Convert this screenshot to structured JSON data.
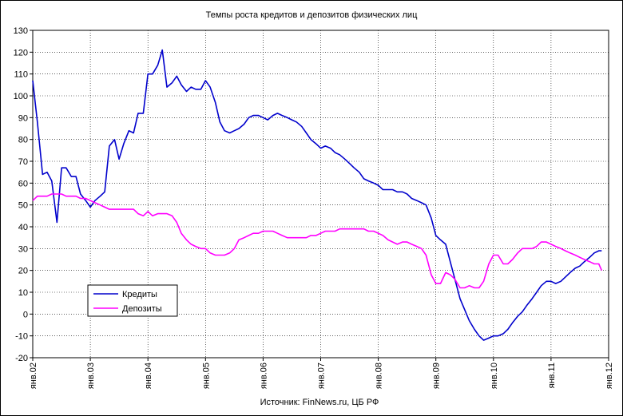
{
  "chart_data": {
    "type": "line",
    "title": "Темпы роста кредитов и депозитов физических лиц",
    "source": "Источник: FinNews.ru, ЦБ РФ",
    "xlabel": "",
    "ylabel": "",
    "ylim": [
      -20,
      130
    ],
    "yticks": [
      -20,
      -10,
      0,
      10,
      20,
      30,
      40,
      50,
      60,
      70,
      80,
      90,
      100,
      110,
      120,
      130
    ],
    "x_range": [
      2002.0,
      2012.0
    ],
    "x_ticks": [
      {
        "label": "янв.02",
        "x": 2002.0
      },
      {
        "label": "янв.03",
        "x": 2003.0
      },
      {
        "label": "янв.04",
        "x": 2004.0
      },
      {
        "label": "янв.05",
        "x": 2005.0
      },
      {
        "label": "янв.06",
        "x": 2006.0
      },
      {
        "label": "янв.07",
        "x": 2007.0
      },
      {
        "label": "янв.08",
        "x": 2008.0
      },
      {
        "label": "янв.09",
        "x": 2009.0
      },
      {
        "label": "янв.10",
        "x": 2010.0
      },
      {
        "label": "янв.11",
        "x": 2011.0
      },
      {
        "label": "янв.12",
        "x": 2012.0
      }
    ],
    "grid": true,
    "legend_position": "lower-left",
    "series": [
      {
        "name": "Кредиты",
        "color": "#0000cc",
        "points": [
          [
            2002.0,
            107
          ],
          [
            2002.08,
            88
          ],
          [
            2002.17,
            64
          ],
          [
            2002.25,
            65
          ],
          [
            2002.33,
            61
          ],
          [
            2002.42,
            42
          ],
          [
            2002.5,
            67
          ],
          [
            2002.58,
            67
          ],
          [
            2002.67,
            63
          ],
          [
            2002.75,
            63
          ],
          [
            2002.83,
            55
          ],
          [
            2002.92,
            52
          ],
          [
            2003.0,
            49
          ],
          [
            2003.08,
            52
          ],
          [
            2003.17,
            54
          ],
          [
            2003.25,
            56
          ],
          [
            2003.33,
            77
          ],
          [
            2003.42,
            80
          ],
          [
            2003.5,
            71
          ],
          [
            2003.58,
            78
          ],
          [
            2003.67,
            84
          ],
          [
            2003.75,
            83
          ],
          [
            2003.83,
            92
          ],
          [
            2003.92,
            92
          ],
          [
            2004.0,
            110
          ],
          [
            2004.08,
            110
          ],
          [
            2004.17,
            114
          ],
          [
            2004.25,
            121
          ],
          [
            2004.33,
            104
          ],
          [
            2004.42,
            106
          ],
          [
            2004.5,
            109
          ],
          [
            2004.58,
            105
          ],
          [
            2004.67,
            102
          ],
          [
            2004.75,
            104
          ],
          [
            2004.83,
            103
          ],
          [
            2004.92,
            103
          ],
          [
            2005.0,
            107
          ],
          [
            2005.08,
            104
          ],
          [
            2005.17,
            97
          ],
          [
            2005.25,
            88
          ],
          [
            2005.33,
            84
          ],
          [
            2005.42,
            83
          ],
          [
            2005.5,
            84
          ],
          [
            2005.58,
            85
          ],
          [
            2005.67,
            87
          ],
          [
            2005.75,
            90
          ],
          [
            2005.83,
            91
          ],
          [
            2005.92,
            91
          ],
          [
            2006.0,
            90
          ],
          [
            2006.08,
            89
          ],
          [
            2006.17,
            91
          ],
          [
            2006.25,
            92
          ],
          [
            2006.33,
            91
          ],
          [
            2006.42,
            90
          ],
          [
            2006.5,
            89
          ],
          [
            2006.58,
            88
          ],
          [
            2006.67,
            86
          ],
          [
            2006.75,
            83
          ],
          [
            2006.83,
            80
          ],
          [
            2006.92,
            78
          ],
          [
            2007.0,
            76
          ],
          [
            2007.08,
            77
          ],
          [
            2007.17,
            76
          ],
          [
            2007.25,
            74
          ],
          [
            2007.33,
            73
          ],
          [
            2007.42,
            71
          ],
          [
            2007.5,
            69
          ],
          [
            2007.58,
            67
          ],
          [
            2007.67,
            65
          ],
          [
            2007.75,
            62
          ],
          [
            2007.83,
            61
          ],
          [
            2007.92,
            60
          ],
          [
            2008.0,
            59
          ],
          [
            2008.08,
            57
          ],
          [
            2008.17,
            57
          ],
          [
            2008.25,
            57
          ],
          [
            2008.33,
            56
          ],
          [
            2008.42,
            56
          ],
          [
            2008.5,
            55
          ],
          [
            2008.58,
            53
          ],
          [
            2008.67,
            52
          ],
          [
            2008.75,
            51
          ],
          [
            2008.83,
            50
          ],
          [
            2008.92,
            44
          ],
          [
            2009.0,
            36
          ],
          [
            2009.08,
            34
          ],
          [
            2009.17,
            32
          ],
          [
            2009.25,
            24
          ],
          [
            2009.33,
            16
          ],
          [
            2009.42,
            7
          ],
          [
            2009.5,
            2
          ],
          [
            2009.58,
            -3
          ],
          [
            2009.67,
            -7
          ],
          [
            2009.75,
            -10
          ],
          [
            2009.83,
            -12
          ],
          [
            2009.92,
            -11
          ],
          [
            2010.0,
            -10
          ],
          [
            2010.08,
            -10
          ],
          [
            2010.17,
            -9
          ],
          [
            2010.25,
            -7
          ],
          [
            2010.33,
            -4
          ],
          [
            2010.42,
            -1
          ],
          [
            2010.5,
            1
          ],
          [
            2010.58,
            4
          ],
          [
            2010.67,
            7
          ],
          [
            2010.75,
            10
          ],
          [
            2010.83,
            13
          ],
          [
            2010.92,
            15
          ],
          [
            2011.0,
            15
          ],
          [
            2011.08,
            14
          ],
          [
            2011.17,
            15
          ],
          [
            2011.25,
            17
          ],
          [
            2011.33,
            19
          ],
          [
            2011.42,
            21
          ],
          [
            2011.5,
            22
          ],
          [
            2011.58,
            24
          ],
          [
            2011.67,
            26
          ],
          [
            2011.75,
            28
          ],
          [
            2011.83,
            29
          ],
          [
            2011.88,
            29
          ]
        ]
      },
      {
        "name": "Депозиты",
        "color": "#ff00ff",
        "points": [
          [
            2002.0,
            52
          ],
          [
            2002.08,
            54
          ],
          [
            2002.17,
            54
          ],
          [
            2002.25,
            54
          ],
          [
            2002.33,
            55
          ],
          [
            2002.42,
            55
          ],
          [
            2002.5,
            55
          ],
          [
            2002.58,
            54
          ],
          [
            2002.67,
            54
          ],
          [
            2002.75,
            54
          ],
          [
            2002.83,
            53
          ],
          [
            2002.92,
            53
          ],
          [
            2003.0,
            52
          ],
          [
            2003.08,
            51
          ],
          [
            2003.17,
            50
          ],
          [
            2003.25,
            49
          ],
          [
            2003.33,
            48
          ],
          [
            2003.42,
            48
          ],
          [
            2003.5,
            48
          ],
          [
            2003.58,
            48
          ],
          [
            2003.67,
            48
          ],
          [
            2003.75,
            48
          ],
          [
            2003.83,
            46
          ],
          [
            2003.92,
            45
          ],
          [
            2004.0,
            47
          ],
          [
            2004.08,
            45
          ],
          [
            2004.17,
            46
          ],
          [
            2004.25,
            46
          ],
          [
            2004.33,
            46
          ],
          [
            2004.42,
            45
          ],
          [
            2004.5,
            42
          ],
          [
            2004.58,
            37
          ],
          [
            2004.67,
            34
          ],
          [
            2004.75,
            32
          ],
          [
            2004.83,
            31
          ],
          [
            2004.92,
            30
          ],
          [
            2005.0,
            30
          ],
          [
            2005.08,
            28
          ],
          [
            2005.17,
            27
          ],
          [
            2005.25,
            27
          ],
          [
            2005.33,
            27
          ],
          [
            2005.42,
            28
          ],
          [
            2005.5,
            30
          ],
          [
            2005.58,
            34
          ],
          [
            2005.67,
            35
          ],
          [
            2005.75,
            36
          ],
          [
            2005.83,
            37
          ],
          [
            2005.92,
            37
          ],
          [
            2006.0,
            38
          ],
          [
            2006.08,
            38
          ],
          [
            2006.17,
            38
          ],
          [
            2006.25,
            37
          ],
          [
            2006.33,
            36
          ],
          [
            2006.42,
            35
          ],
          [
            2006.5,
            35
          ],
          [
            2006.58,
            35
          ],
          [
            2006.67,
            35
          ],
          [
            2006.75,
            35
          ],
          [
            2006.83,
            36
          ],
          [
            2006.92,
            36
          ],
          [
            2007.0,
            37
          ],
          [
            2007.08,
            38
          ],
          [
            2007.17,
            38
          ],
          [
            2007.25,
            38
          ],
          [
            2007.33,
            39
          ],
          [
            2007.42,
            39
          ],
          [
            2007.5,
            39
          ],
          [
            2007.58,
            39
          ],
          [
            2007.67,
            39
          ],
          [
            2007.75,
            39
          ],
          [
            2007.83,
            38
          ],
          [
            2007.92,
            38
          ],
          [
            2008.0,
            37
          ],
          [
            2008.08,
            36
          ],
          [
            2008.17,
            34
          ],
          [
            2008.25,
            33
          ],
          [
            2008.33,
            32
          ],
          [
            2008.42,
            33
          ],
          [
            2008.5,
            33
          ],
          [
            2008.58,
            32
          ],
          [
            2008.67,
            31
          ],
          [
            2008.75,
            30
          ],
          [
            2008.83,
            27
          ],
          [
            2008.92,
            18
          ],
          [
            2009.0,
            14
          ],
          [
            2009.08,
            14
          ],
          [
            2009.17,
            19
          ],
          [
            2009.25,
            18
          ],
          [
            2009.33,
            16
          ],
          [
            2009.42,
            12
          ],
          [
            2009.5,
            12
          ],
          [
            2009.58,
            13
          ],
          [
            2009.67,
            12
          ],
          [
            2009.75,
            12
          ],
          [
            2009.83,
            15
          ],
          [
            2009.92,
            23
          ],
          [
            2010.0,
            27
          ],
          [
            2010.08,
            27
          ],
          [
            2010.17,
            23
          ],
          [
            2010.25,
            23
          ],
          [
            2010.33,
            25
          ],
          [
            2010.42,
            28
          ],
          [
            2010.5,
            30
          ],
          [
            2010.58,
            30
          ],
          [
            2010.67,
            30
          ],
          [
            2010.75,
            31
          ],
          [
            2010.83,
            33
          ],
          [
            2010.92,
            33
          ],
          [
            2011.0,
            32
          ],
          [
            2011.08,
            31
          ],
          [
            2011.17,
            30
          ],
          [
            2011.25,
            29
          ],
          [
            2011.33,
            28
          ],
          [
            2011.42,
            27
          ],
          [
            2011.5,
            26
          ],
          [
            2011.58,
            25
          ],
          [
            2011.67,
            24
          ],
          [
            2011.75,
            23
          ],
          [
            2011.83,
            23
          ],
          [
            2011.88,
            20
          ]
        ]
      }
    ]
  }
}
